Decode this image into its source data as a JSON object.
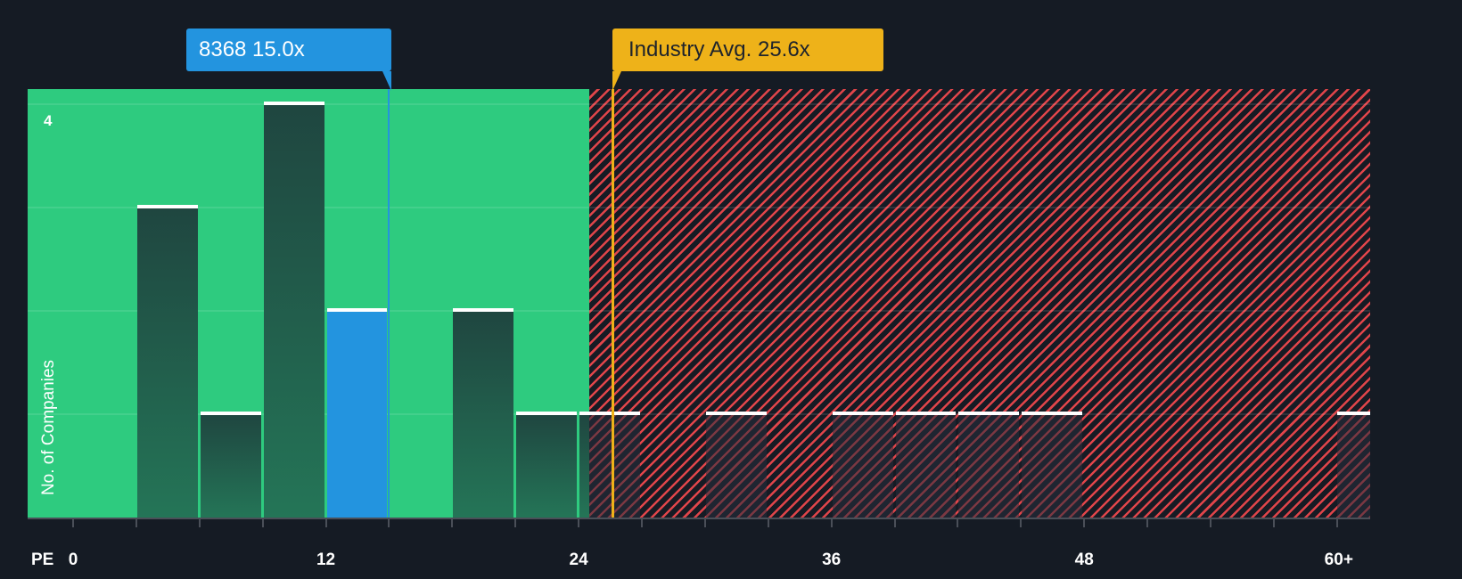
{
  "chart_data": {
    "type": "bar",
    "title": "",
    "xlabel": "PE",
    "ylabel": "No. of Companies",
    "x_ticks": [
      "0",
      "12",
      "24",
      "36",
      "48",
      "60+"
    ],
    "y_ticks": [
      "4"
    ],
    "ylim": [
      0,
      4
    ],
    "xlim": [
      0,
      61.5
    ],
    "bin_width": 3,
    "bins": [
      {
        "range": "0-3",
        "start": 0,
        "count": 0
      },
      {
        "range": "3-6",
        "start": 3,
        "count": 3
      },
      {
        "range": "6-9",
        "start": 6,
        "count": 1
      },
      {
        "range": "9-12",
        "start": 9,
        "count": 4
      },
      {
        "range": "12-15",
        "start": 12,
        "count": 2,
        "highlight": true
      },
      {
        "range": "15-18",
        "start": 15,
        "count": 0
      },
      {
        "range": "18-21",
        "start": 18,
        "count": 2
      },
      {
        "range": "21-24",
        "start": 21,
        "count": 1
      },
      {
        "range": "24-27",
        "start": 24,
        "count": 1
      },
      {
        "range": "27-30",
        "start": 27,
        "count": 0
      },
      {
        "range": "30-33",
        "start": 30,
        "count": 1
      },
      {
        "range": "33-36",
        "start": 33,
        "count": 0
      },
      {
        "range": "36-39",
        "start": 36,
        "count": 1
      },
      {
        "range": "39-42",
        "start": 39,
        "count": 1
      },
      {
        "range": "42-45",
        "start": 42,
        "count": 1
      },
      {
        "range": "45-48",
        "start": 45,
        "count": 1
      },
      {
        "range": "60+",
        "start": 60,
        "count": 1
      }
    ],
    "zones": [
      {
        "name": "undervalued",
        "from": 0,
        "to": 24.5,
        "color": "#2ecb7f"
      },
      {
        "name": "overvalued",
        "from": 24.5,
        "to": 61.5,
        "color": "#e0454a",
        "pattern": "hatched"
      }
    ],
    "annotations": [
      {
        "label": "8368 15.0x",
        "ticker": "8368",
        "value": 15.0,
        "color": "#2394df"
      },
      {
        "label": "Industry Avg. 25.6x",
        "value": 25.6,
        "color": "#eeb219"
      }
    ]
  },
  "labels": {
    "company_callout": "8368 15.0x",
    "industry_callout": "Industry Avg. 25.6x",
    "x_axis_label": "PE",
    "y_axis_label": "No. of Companies",
    "y_tick_4": "4"
  },
  "x_tick_labels": [
    "0",
    "12",
    "24",
    "36",
    "48",
    "60+"
  ]
}
